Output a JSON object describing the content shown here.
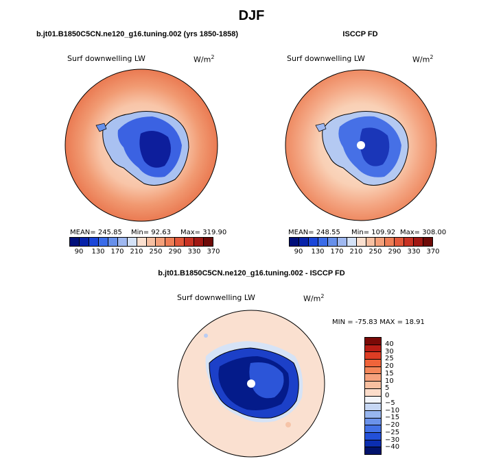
{
  "title": "DJF",
  "panels": [
    {
      "title": "b.jt01.B1850C5CN.ne120_g16.tuning.002 (yrs 1850-1858)",
      "field_label": "Surf downwelling LW",
      "units": "W/m",
      "units_sup": "2",
      "stats": {
        "mean": "MEAN= 245.85",
        "min": "Min= 92.63",
        "max": "Max= 319.90"
      }
    },
    {
      "title": "ISCCP FD",
      "field_label": "Surf downwelling LW",
      "units": "W/m",
      "units_sup": "2",
      "stats": {
        "mean": "MEAN= 248.55",
        "min": "Min= 109.92",
        "max": "Max= 308.00"
      }
    }
  ],
  "colorbar_levels": [
    "90",
    "130",
    "170",
    "210",
    "250",
    "290",
    "330",
    "370"
  ],
  "colorbar_colors": [
    "#000f7a",
    "#0823a9",
    "#1b46d8",
    "#3b6ce8",
    "#6790ea",
    "#9fb8f0",
    "#d4e2f7",
    "#fbe0cf",
    "#f7c0a2",
    "#f4a07a",
    "#ee7e56",
    "#e2583a",
    "#c83223",
    "#a11813",
    "#6e0a07"
  ],
  "diff": {
    "title": "b.jt01.B1850C5CN.ne120_g16.tuning.002 - ISCCP FD",
    "field_label": "Surf downwelling LW",
    "units": "W/m",
    "units_sup": "2",
    "minmax": "MIN = -75.83 MAX = 18.91",
    "levels": [
      "40",
      "30",
      "25",
      "20",
      "15",
      "10",
      "5",
      "0",
      "−5",
      "−10",
      "−15",
      "−20",
      "−25",
      "−30",
      "−40"
    ],
    "colors": [
      "#7a0a07",
      "#b81d15",
      "#de3d24",
      "#f0643a",
      "#f4875a",
      "#f6a27d",
      "#f8bfa0",
      "#fbdcca",
      "#f2f5fb",
      "#c6d7f4",
      "#98b6ef",
      "#6b92ea",
      "#4371e6",
      "#2350d9",
      "#0b2eb0",
      "#02136c"
    ]
  }
}
